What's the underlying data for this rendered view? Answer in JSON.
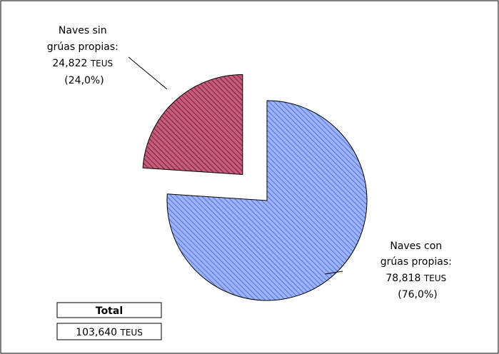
{
  "chart_data": {
    "type": "pie",
    "slices": [
      {
        "label_lines": [
          "Naves con",
          "grúas propias:"
        ],
        "value_text": "78,818",
        "unit": "TEUS",
        "percent_text": "(76,0%)",
        "value": 78818,
        "percent": 76.0,
        "color": "#99b3ff",
        "exploded": false
      },
      {
        "label_lines": [
          "Naves sin",
          "grúas propias:"
        ],
        "value_text": "24,822",
        "unit": "TEUS",
        "percent_text": "(24,0%)",
        "value": 24822,
        "percent": 24.0,
        "color": "#b34766",
        "exploded": true
      }
    ],
    "total": {
      "title": "Total",
      "value_text": "103,640",
      "unit": "TEUS",
      "value": 103640
    }
  }
}
